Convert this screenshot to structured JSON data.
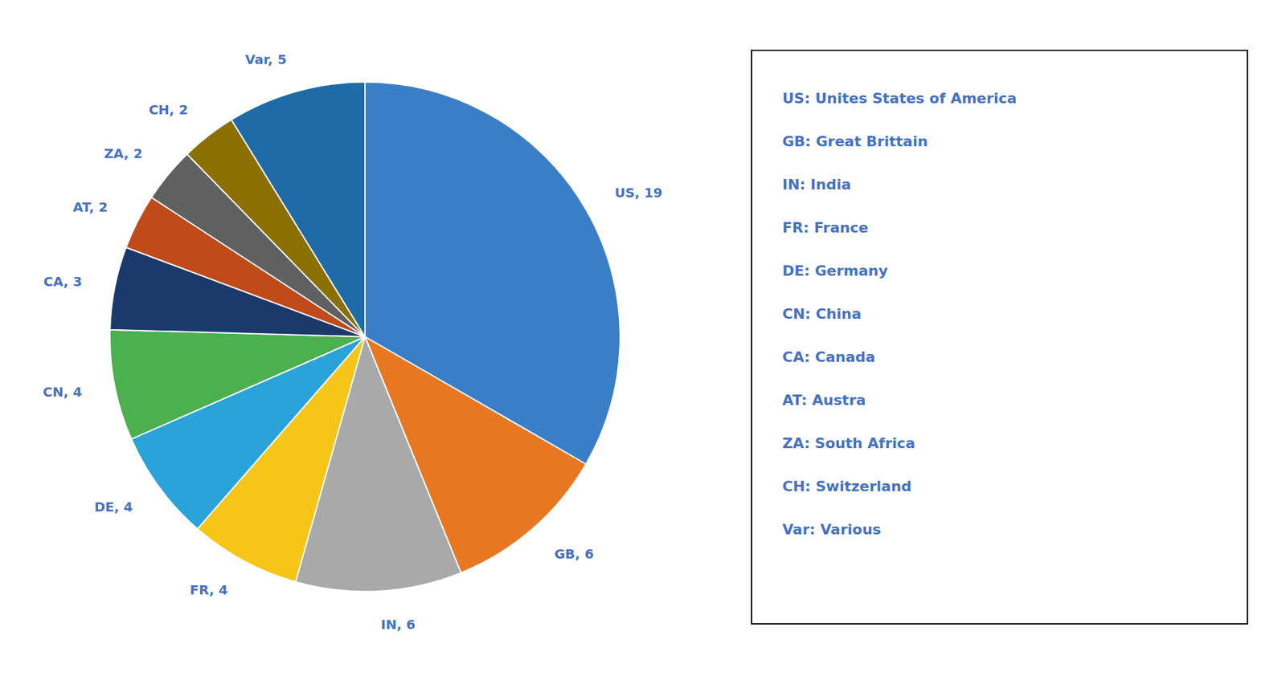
{
  "chart_data": {
    "type": "pie",
    "categories": [
      "US",
      "GB",
      "IN",
      "FR",
      "DE",
      "CN",
      "CA",
      "AT",
      "ZA",
      "CH",
      "Var"
    ],
    "values": [
      19,
      6,
      6,
      4,
      4,
      4,
      3,
      2,
      2,
      2,
      5
    ],
    "colors": [
      "#3B7EC8",
      "#E87722",
      "#A9A9A9",
      "#F5C518",
      "#29A3D9",
      "#4CAF50",
      "#1B3A6B",
      "#C04A1A",
      "#606060",
      "#8B7000",
      "#1E6BA8"
    ],
    "data_labels": true,
    "value_labels": [
      "US, 19",
      "GB, 6",
      "IN, 6",
      "FR, 4",
      "DE, 4",
      "CN, 4",
      "CA, 3",
      "AT, 2",
      "ZA, 2",
      "CH, 2",
      "Var, 5"
    ],
    "annotations": [
      "US: Unites States of America",
      "GB: Great Brittain",
      "IN: India",
      "FR: France",
      "DE: Germany",
      "CN: China",
      "CA: Canada",
      "AT: Austra",
      "ZA: South Africa",
      "CH: Switzerland",
      "Var: Various"
    ]
  }
}
